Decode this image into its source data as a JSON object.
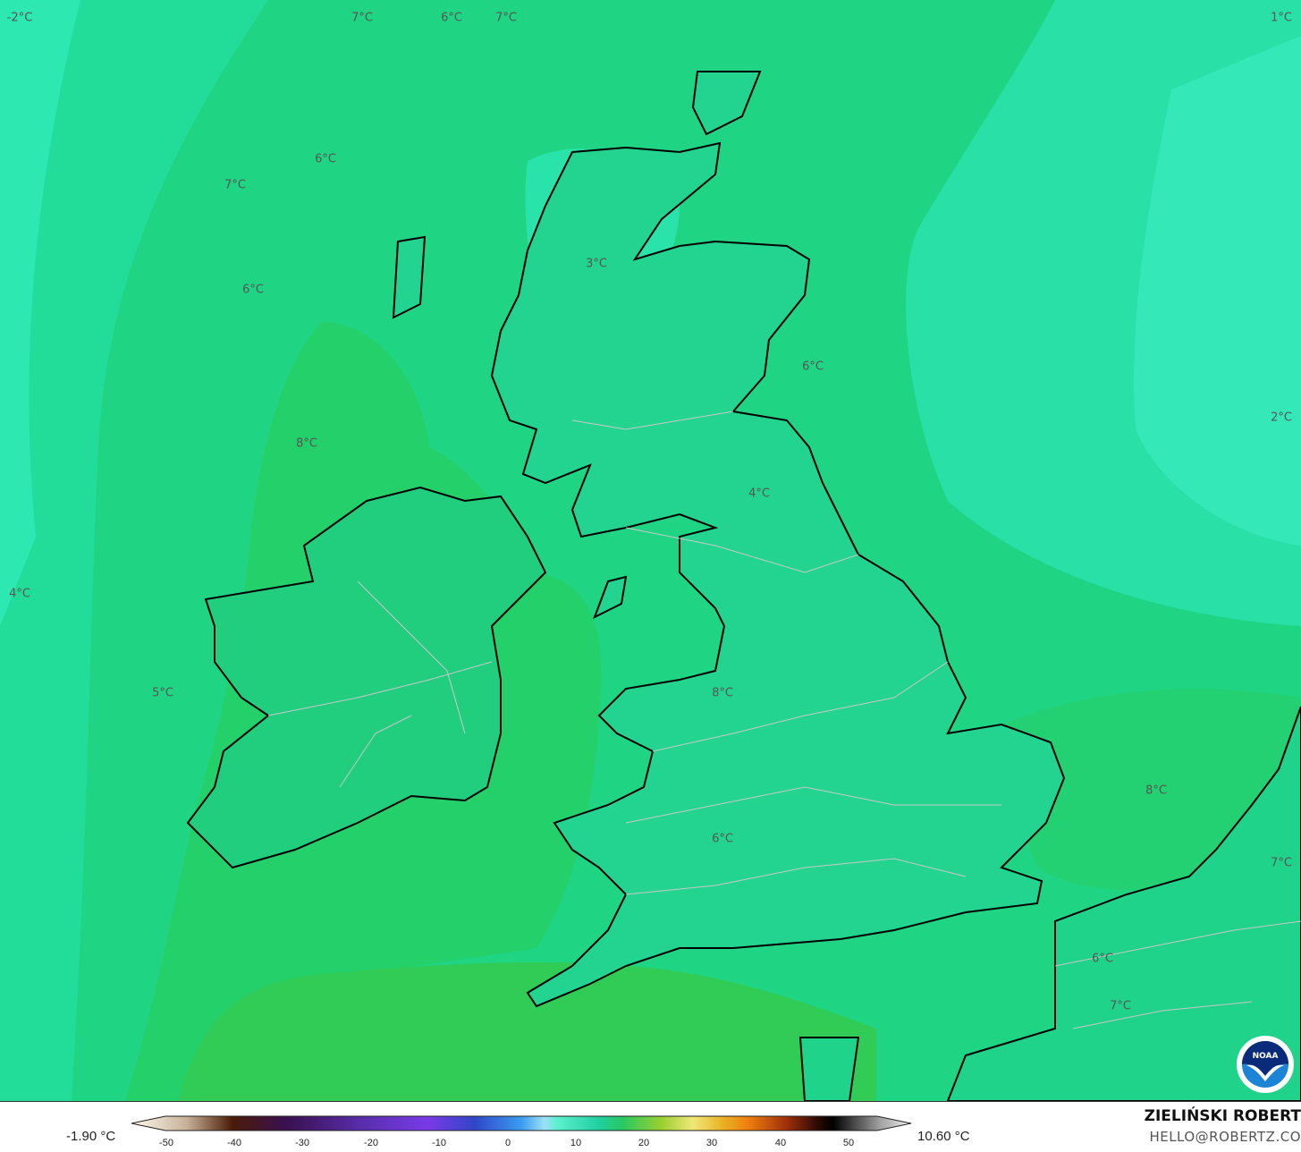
{
  "map": {
    "variable_unit": "°C",
    "colors": {
      "base": "#1fd584",
      "east_cool": "#33e6b4",
      "west_cool": "#17cf8f",
      "south_warm": "#26cc5c",
      "warmest": "#3ccc48",
      "coast": "#000000",
      "borders": "#c8c8c8"
    },
    "labels": [
      {
        "text": "-2°C"
      },
      {
        "text": "7°C"
      },
      {
        "text": "6°C"
      },
      {
        "text": "7°C"
      },
      {
        "text": "1°C"
      },
      {
        "text": "6°C"
      },
      {
        "text": "7°C"
      },
      {
        "text": "3°C"
      },
      {
        "text": "6°C"
      },
      {
        "text": "6°C"
      },
      {
        "text": "2°C"
      },
      {
        "text": "8°C"
      },
      {
        "text": "4°C"
      },
      {
        "text": "4°C"
      },
      {
        "text": "5°C"
      },
      {
        "text": "8°C"
      },
      {
        "text": "8°C"
      },
      {
        "text": "6°C"
      },
      {
        "text": "7°C"
      },
      {
        "text": "6°C"
      },
      {
        "text": "7°C"
      }
    ],
    "logo": {
      "text": "NOAA",
      "icon": "noaa-logo"
    }
  },
  "legend": {
    "min_label": "-1.90 °C",
    "max_label": "10.60 °C",
    "ticks": [
      "-50",
      "-40",
      "-30",
      "-20",
      "-10",
      "0",
      "10",
      "20",
      "30",
      "40",
      "50"
    ]
  },
  "credits": {
    "author": "ZIELIŃSKI ROBERT",
    "email": "HELLO@ROBERTZ.CO"
  }
}
